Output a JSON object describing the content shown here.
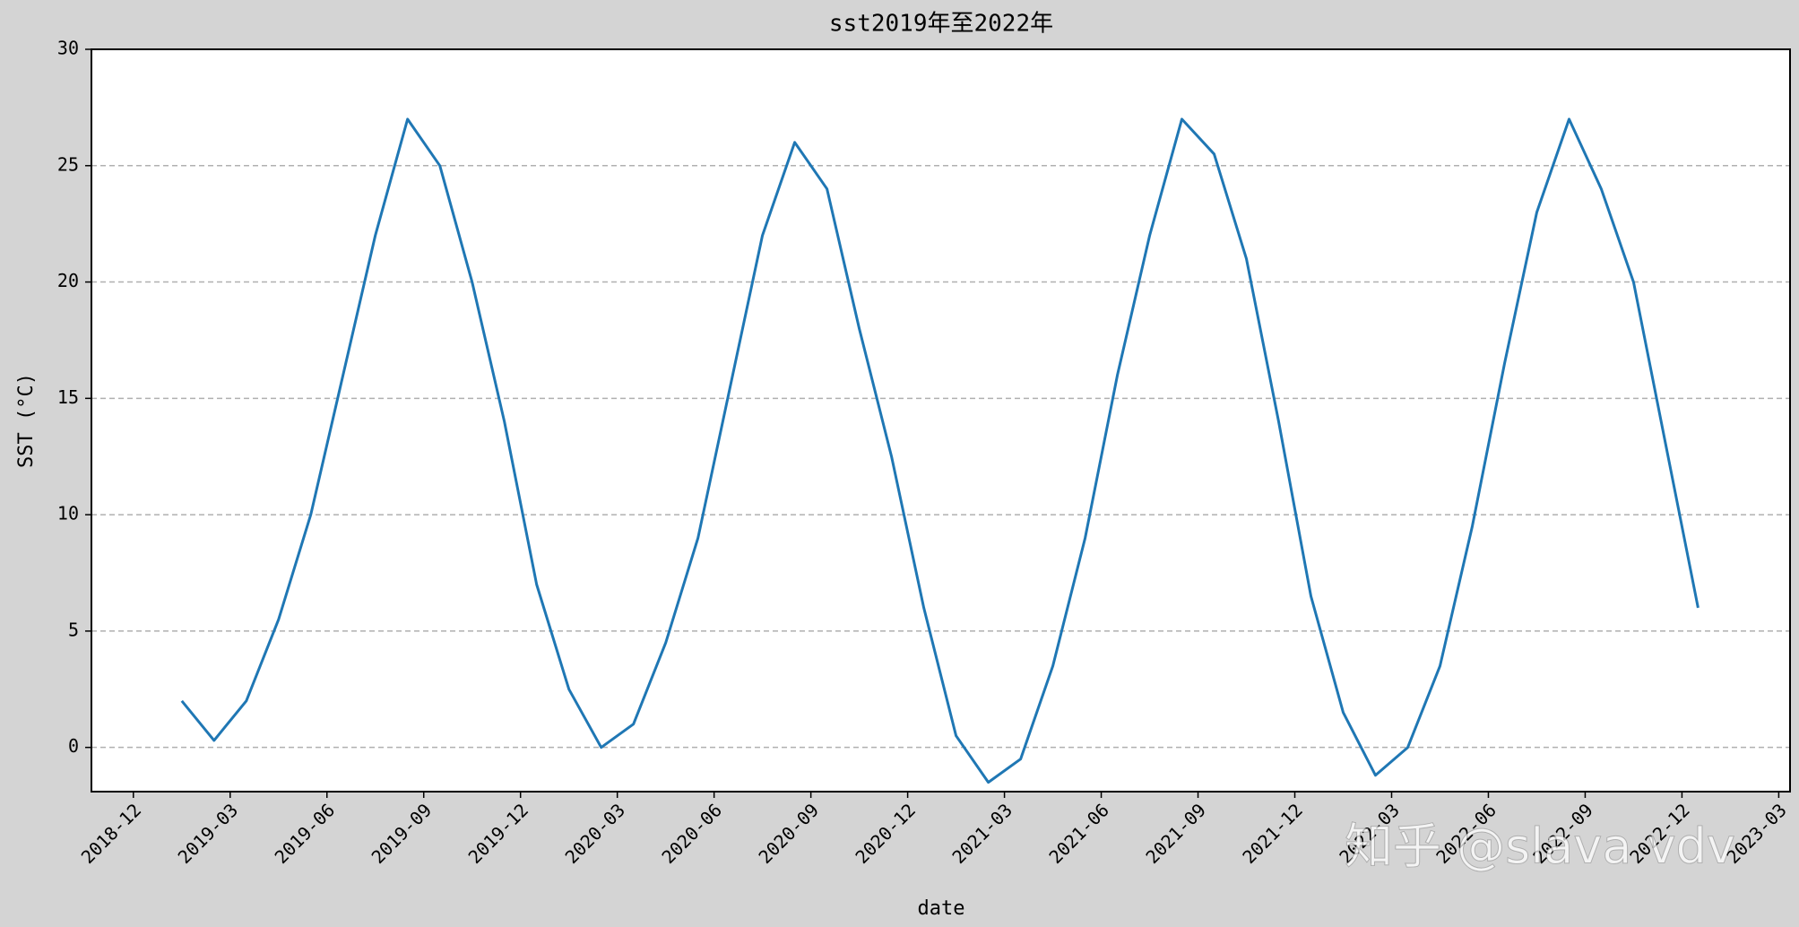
{
  "chart_data": {
    "type": "line",
    "title": "sst2019年至2022年",
    "x_label": "date",
    "y_label": "SST (°C)",
    "x": [
      "2019-01",
      "2019-02",
      "2019-03",
      "2019-04",
      "2019-05",
      "2019-06",
      "2019-07",
      "2019-08",
      "2019-09",
      "2019-10",
      "2019-11",
      "2019-12",
      "2020-01",
      "2020-02",
      "2020-03",
      "2020-04",
      "2020-05",
      "2020-06",
      "2020-07",
      "2020-08",
      "2020-09",
      "2020-10",
      "2020-11",
      "2020-12",
      "2021-01",
      "2021-02",
      "2021-03",
      "2021-04",
      "2021-05",
      "2021-06",
      "2021-07",
      "2021-08",
      "2021-09",
      "2021-10",
      "2021-11",
      "2021-12",
      "2022-01",
      "2022-02",
      "2022-03",
      "2022-04",
      "2022-05",
      "2022-06",
      "2022-07",
      "2022-08",
      "2022-09",
      "2022-10",
      "2022-11",
      "2022-12"
    ],
    "series": [
      {
        "name": "sst",
        "color": "#1f77b4",
        "values": [
          2.0,
          0.3,
          2.0,
          5.5,
          10.0,
          16.0,
          22.0,
          27.0,
          25.0,
          20.0,
          14.0,
          7.0,
          2.5,
          0.0,
          1.0,
          4.5,
          9.0,
          15.5,
          22.0,
          26.0,
          24.0,
          18.0,
          12.5,
          6.0,
          0.5,
          -1.5,
          -0.5,
          3.5,
          9.0,
          16.0,
          22.0,
          27.0,
          25.5,
          21.0,
          14.0,
          6.5,
          1.5,
          -1.2,
          0.0,
          3.5,
          9.5,
          16.5,
          23.0,
          27.0,
          24.0,
          20.0,
          13.0,
          6.0
        ]
      }
    ],
    "xlim": [
      "2018-11",
      "2023-03"
    ],
    "xticks": [
      "2018-12",
      "2019-03",
      "2019-06",
      "2019-09",
      "2019-12",
      "2020-03",
      "2020-06",
      "2020-09",
      "2020-12",
      "2021-03",
      "2021-06",
      "2021-09",
      "2021-12",
      "2022-03",
      "2022-06",
      "2022-09",
      "2022-12",
      "2023-03"
    ],
    "ylim": [
      -1.9,
      30
    ],
    "yticks": [
      0,
      5,
      10,
      15,
      20,
      25,
      30
    ],
    "grid": true,
    "watermark": "知乎 @slava vdv"
  }
}
